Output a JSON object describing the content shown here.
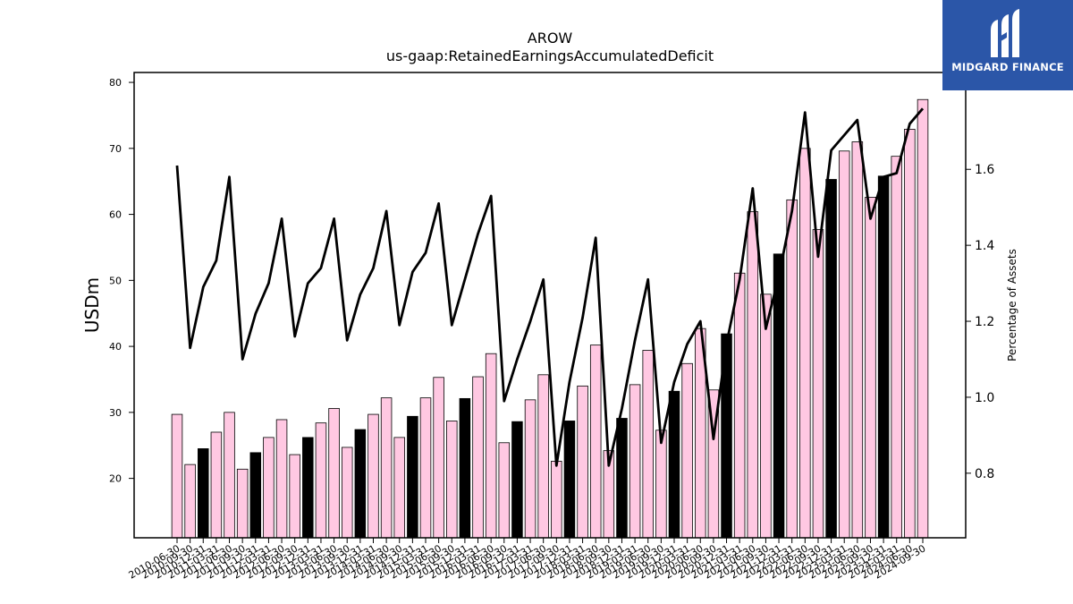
{
  "chart_data": {
    "type": "bar",
    "title": "AROW",
    "subtitle": "us-gaap:RetainedEarningsAccumulatedDeficit",
    "ylabel": "USDm",
    "y2label": "Percentage of Assets",
    "ylim": [
      11,
      81.5
    ],
    "y2lim": [
      0.63,
      1.855
    ],
    "yticks": [
      20,
      30,
      40,
      50,
      60,
      70,
      80
    ],
    "y2ticks": [
      0.8,
      1.0,
      1.2,
      1.4,
      1.6
    ],
    "grid": false,
    "x": [
      "2010-06-30",
      "2010-09-30",
      "2010-12-31",
      "2011-03-31",
      "2011-06-30",
      "2011-09-30",
      "2011-12-31",
      "2012-03-31",
      "2012-06-30",
      "2012-09-30",
      "2012-12-31",
      "2013-03-31",
      "2013-06-30",
      "2013-09-30",
      "2013-12-31",
      "2014-03-31",
      "2014-06-30",
      "2014-09-30",
      "2014-12-31",
      "2015-03-31",
      "2015-06-30",
      "2015-09-30",
      "2015-12-31",
      "2016-03-31",
      "2016-06-30",
      "2016-09-30",
      "2016-12-31",
      "2017-03-31",
      "2017-06-30",
      "2017-09-30",
      "2017-12-31",
      "2018-03-31",
      "2018-06-30",
      "2018-09-30",
      "2018-12-31",
      "2019-03-31",
      "2019-06-30",
      "2019-09-30",
      "2019-12-31",
      "2020-03-31",
      "2020-06-30",
      "2020-09-30",
      "2020-12-31",
      "2021-03-31",
      "2021-06-30",
      "2021-09-30",
      "2021-12-31",
      "2022-03-31",
      "2022-06-30",
      "2022-09-30",
      "2022-12-31",
      "2023-03-31",
      "2023-06-30",
      "2023-09-30",
      "2023-12-31",
      "2024-03-31",
      "2024-06-30",
      "2024-09-30"
    ],
    "xtick_labels": [
      "2010-06-30",
      "2010-09-30",
      "2010-12-31",
      "2011-03-31",
      "2011-06-30",
      "2011-09-30",
      "2011-12-31",
      "2012-03-31",
      "2012-06-30",
      "2012-09-30",
      "2012-12-31",
      "2013-03-31",
      "2013-06-30",
      "2013-09-30",
      "2013-12-31",
      "2014-03-31",
      "2014-06-30",
      "2014-09-30",
      "2014-12-31",
      "2015-03-31",
      "2015-06-30",
      "2015-09-30",
      "2015-12-31",
      "2016-03-31",
      "2016-06-30",
      "2016-09-30",
      "2016-12-31",
      "2017-03-31",
      "2017-06-30",
      "2017-09-30",
      "2017-12-31",
      "2018-03-31",
      "2018-06-30",
      "2018-09-30",
      "2018-12-31",
      "2019-03-31",
      "2019-06-30",
      "2019-09-30",
      "2019-12-31",
      "2020-03-31",
      "2020-06-30",
      "2020-09-30",
      "2020-12-31",
      "2021-03-31",
      "2021-06-30",
      "2021-09-30",
      "2021-12-31",
      "2022-03-31",
      "2022-06-30",
      "2022-09-30",
      "2022-12-31",
      "2023-03-31",
      "2023-06-30",
      "2023-09-30",
      "2023-12-31",
      "2024-03-31",
      "2024-06-30",
      "2024-09-30"
    ],
    "series": [
      {
        "kind": "bar",
        "axis": "left",
        "values": [
          29.7,
          22.1,
          24.5,
          27.0,
          30.0,
          21.4,
          23.9,
          26.2,
          28.9,
          23.6,
          26.2,
          28.4,
          30.6,
          24.7,
          27.4,
          29.7,
          32.2,
          26.2,
          29.4,
          32.2,
          35.3,
          28.7,
          32.1,
          35.4,
          38.9,
          25.4,
          28.6,
          31.9,
          35.7,
          22.6,
          28.7,
          34.0,
          40.2,
          24.2,
          29.1,
          34.2,
          39.4,
          27.3,
          33.2,
          37.4,
          42.7,
          33.4,
          41.9,
          51.1,
          60.4,
          47.9,
          54.0,
          62.2,
          70.0,
          57.7,
          65.3,
          69.6,
          71.0,
          62.6,
          65.8,
          68.8,
          72.9,
          77.4
        ],
        "colors": [
          "#ffc8e2",
          "#ffc8e2",
          "#000000",
          "#ffc8e2",
          "#ffc8e2",
          "#ffc8e2",
          "#000000",
          "#ffc8e2",
          "#ffc8e2",
          "#ffc8e2",
          "#000000",
          "#ffc8e2",
          "#ffc8e2",
          "#ffc8e2",
          "#000000",
          "#ffc8e2",
          "#ffc8e2",
          "#ffc8e2",
          "#000000",
          "#ffc8e2",
          "#ffc8e2",
          "#ffc8e2",
          "#000000",
          "#ffc8e2",
          "#ffc8e2",
          "#ffc8e2",
          "#000000",
          "#ffc8e2",
          "#ffc8e2",
          "#ffc8e2",
          "#000000",
          "#ffc8e2",
          "#ffc8e2",
          "#ffc8e2",
          "#000000",
          "#ffc8e2",
          "#ffc8e2",
          "#ffc8e2",
          "#000000",
          "#ffc8e2",
          "#ffc8e2",
          "#ffc8e2",
          "#000000",
          "#ffc8e2",
          "#ffc8e2",
          "#ffc8e2",
          "#000000",
          "#ffc8e2",
          "#ffc8e2",
          "#ffc8e2",
          "#000000",
          "#ffc8e2",
          "#ffc8e2",
          "#ffc8e2",
          "#000000",
          "#ffc8e2",
          "#ffc8e2",
          "#ffc8e2"
        ]
      },
      {
        "kind": "line",
        "axis": "right",
        "color": "#000000",
        "values": [
          1.61,
          1.13,
          1.29,
          1.36,
          1.58,
          1.1,
          1.22,
          1.3,
          1.47,
          1.16,
          1.3,
          1.34,
          1.47,
          1.15,
          1.27,
          1.34,
          1.49,
          1.19,
          1.33,
          1.38,
          1.51,
          1.19,
          1.31,
          1.43,
          1.53,
          0.99,
          1.1,
          1.2,
          1.31,
          0.82,
          1.04,
          1.21,
          1.42,
          0.82,
          0.97,
          1.15,
          1.31,
          0.88,
          1.04,
          1.14,
          1.2,
          0.89,
          1.14,
          1.31,
          1.55,
          1.18,
          1.32,
          1.49,
          1.75,
          1.37,
          1.65,
          1.69,
          1.73,
          1.47,
          1.58,
          1.59,
          1.72,
          1.76
        ]
      }
    ]
  },
  "brand": {
    "name": "MIDGARD FINANCE",
    "background": "#2b56a8",
    "text_color": "#ffffff"
  }
}
